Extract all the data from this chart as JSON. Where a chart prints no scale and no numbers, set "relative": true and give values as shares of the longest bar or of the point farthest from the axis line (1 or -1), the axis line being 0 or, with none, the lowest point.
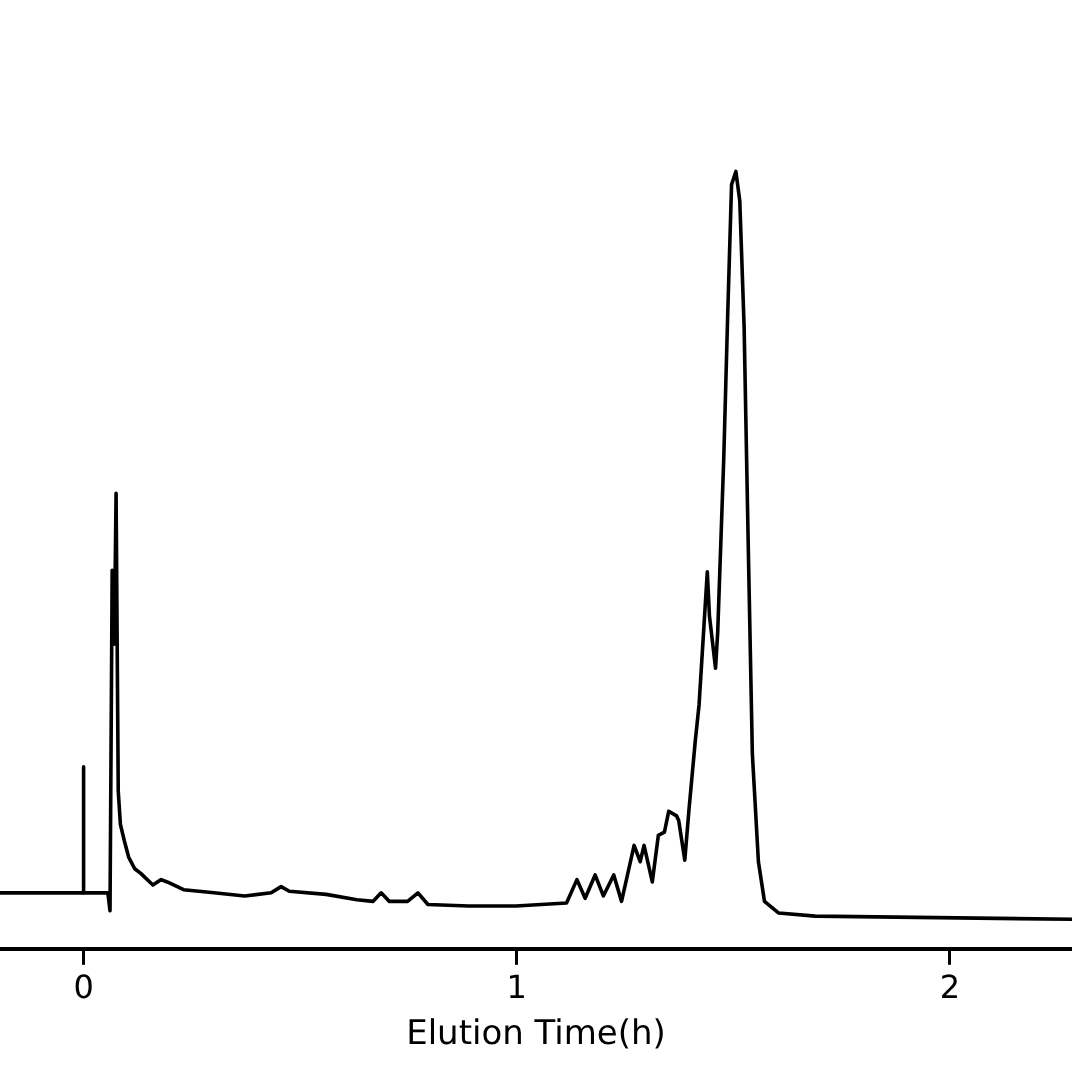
{
  "chart_data": {
    "type": "line",
    "xlabel": "Elution Time(h)",
    "relative": true,
    "xlim": [
      -0.193,
      2.282
    ],
    "xticks": [
      0,
      1,
      2
    ],
    "tick_labels": "x",
    "grid": false,
    "legend": false,
    "marker": "none",
    "line_style": "solid",
    "series": [
      {
        "color": "#000000",
        "x": [
          -0.193,
          0.056,
          0.061,
          0.066,
          0.071,
          0.075,
          0.08,
          0.085,
          0.094,
          0.104,
          0.118,
          0.132,
          0.16,
          0.179,
          0.193,
          0.231,
          0.301,
          0.372,
          0.433,
          0.456,
          0.475,
          0.56,
          0.631,
          0.668,
          0.687,
          0.706,
          0.748,
          0.772,
          0.795,
          0.889,
          0.998,
          1.115,
          1.139,
          1.158,
          1.181,
          1.2,
          1.224,
          1.242,
          1.271,
          1.285,
          1.294,
          1.313,
          1.327,
          1.341,
          1.351,
          1.369,
          1.374,
          1.388,
          1.398,
          1.412,
          1.421,
          1.44,
          1.445,
          1.459,
          1.464,
          1.478,
          1.487,
          1.496,
          1.506,
          1.515,
          1.525,
          1.534,
          1.544,
          1.558,
          1.572,
          1.605,
          1.689,
          2.282
        ],
        "values": [
          0.072,
          0.072,
          0.049,
          0.487,
          0.392,
          0.586,
          0.203,
          0.16,
          0.139,
          0.118,
          0.103,
          0.097,
          0.082,
          0.089,
          0.086,
          0.076,
          0.072,
          0.068,
          0.072,
          0.08,
          0.074,
          0.07,
          0.063,
          0.061,
          0.072,
          0.061,
          0.061,
          0.072,
          0.057,
          0.055,
          0.055,
          0.059,
          0.089,
          0.065,
          0.095,
          0.068,
          0.095,
          0.061,
          0.133,
          0.112,
          0.133,
          0.086,
          0.146,
          0.15,
          0.177,
          0.171,
          0.165,
          0.114,
          0.181,
          0.266,
          0.314,
          0.485,
          0.428,
          0.361,
          0.407,
          0.631,
          0.814,
          0.983,
          1,
          0.962,
          0.8,
          0.534,
          0.251,
          0.112,
          0.061,
          0.046,
          0.042,
          0.038
        ]
      },
      {
        "color": "#000000",
        "x": [
          0,
          0
        ],
        "values": [
          0.072,
          0.234
        ]
      }
    ]
  }
}
